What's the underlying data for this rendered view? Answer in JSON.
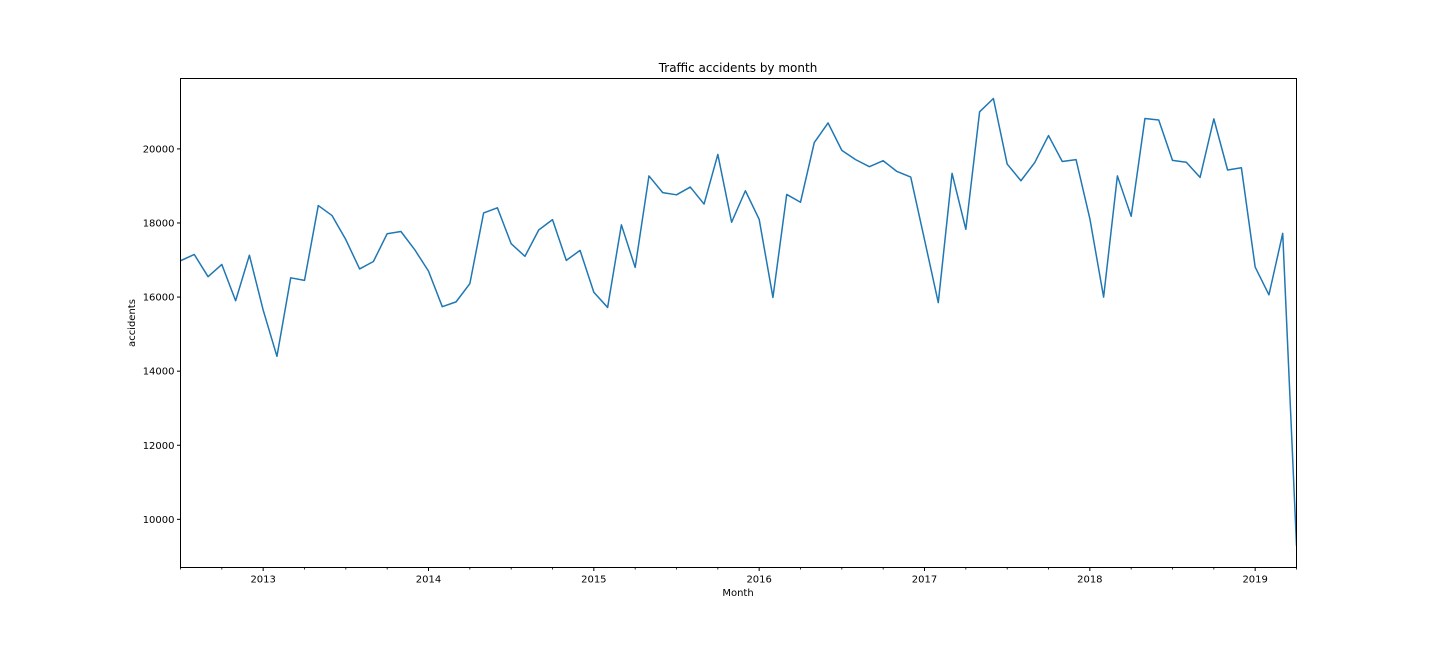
{
  "colors": {
    "line": "#1f77b4",
    "axis": "#000000",
    "background": "#ffffff"
  },
  "chart_data": {
    "type": "line",
    "title": "Traffic accidents by month",
    "xlabel": "Month",
    "ylabel": "accidents",
    "grid": false,
    "legend": "none",
    "x_range": [
      "2012-07",
      "2019-04"
    ],
    "ylim": [
      8700,
      21900
    ],
    "x_ticks": [
      {
        "value": "2013-01",
        "label": "2013"
      },
      {
        "value": "2014-01",
        "label": "2014"
      },
      {
        "value": "2015-01",
        "label": "2015"
      },
      {
        "value": "2016-01",
        "label": "2016"
      },
      {
        "value": "2017-01",
        "label": "2017"
      },
      {
        "value": "2018-01",
        "label": "2018"
      },
      {
        "value": "2019-01",
        "label": "2019"
      }
    ],
    "y_ticks": [
      {
        "value": 10000,
        "label": "10000"
      },
      {
        "value": 12000,
        "label": "12000"
      },
      {
        "value": 14000,
        "label": "14000"
      },
      {
        "value": 16000,
        "label": "16000"
      },
      {
        "value": 18000,
        "label": "18000"
      },
      {
        "value": 20000,
        "label": "20000"
      }
    ],
    "series": [
      {
        "x": [
          "2012-07",
          "2012-08",
          "2012-09",
          "2012-10",
          "2012-11",
          "2012-12",
          "2013-01",
          "2013-02",
          "2013-03",
          "2013-04",
          "2013-05",
          "2013-06",
          "2013-07",
          "2013-08",
          "2013-09",
          "2013-10",
          "2013-11",
          "2013-12",
          "2014-01",
          "2014-02",
          "2014-03",
          "2014-04",
          "2014-05",
          "2014-06",
          "2014-07",
          "2014-08",
          "2014-09",
          "2014-10",
          "2014-11",
          "2014-12",
          "2015-01",
          "2015-02",
          "2015-03",
          "2015-04",
          "2015-05",
          "2015-06",
          "2015-07",
          "2015-08",
          "2015-09",
          "2015-10",
          "2015-11",
          "2015-12",
          "2016-01",
          "2016-02",
          "2016-03",
          "2016-04",
          "2016-05",
          "2016-06",
          "2016-07",
          "2016-08",
          "2016-09",
          "2016-10",
          "2016-11",
          "2016-12",
          "2017-01",
          "2017-02",
          "2017-03",
          "2017-04",
          "2017-05",
          "2017-06",
          "2017-07",
          "2017-08",
          "2017-09",
          "2017-10",
          "2017-11",
          "2017-12",
          "2018-01",
          "2018-02",
          "2018-03",
          "2018-04",
          "2018-05",
          "2018-06",
          "2018-07",
          "2018-08",
          "2018-09",
          "2018-10",
          "2018-11",
          "2018-12",
          "2019-01",
          "2019-02",
          "2019-03",
          "2019-04"
        ],
        "y": [
          16980,
          17150,
          16550,
          16880,
          15900,
          17130,
          15650,
          14400,
          16520,
          16450,
          18470,
          18200,
          17550,
          16760,
          16960,
          17710,
          17770,
          17280,
          16700,
          15740,
          15870,
          16360,
          18270,
          18410,
          17440,
          17100,
          17810,
          18090,
          16990,
          17260,
          16130,
          15720,
          17950,
          16800,
          19270,
          18820,
          18760,
          18970,
          18510,
          19850,
          18020,
          18870,
          18100,
          15990,
          18770,
          18560,
          20170,
          20700,
          19960,
          19710,
          19520,
          19680,
          19390,
          19240,
          17550,
          15850,
          19340,
          17830,
          21000,
          21360,
          19590,
          19140,
          19630,
          20360,
          19660,
          19710,
          18120,
          16000,
          19270,
          18180,
          20820,
          20780,
          19690,
          19640,
          19230,
          20810,
          19430,
          19490,
          16810,
          16060,
          17720,
          9300
        ]
      }
    ]
  }
}
